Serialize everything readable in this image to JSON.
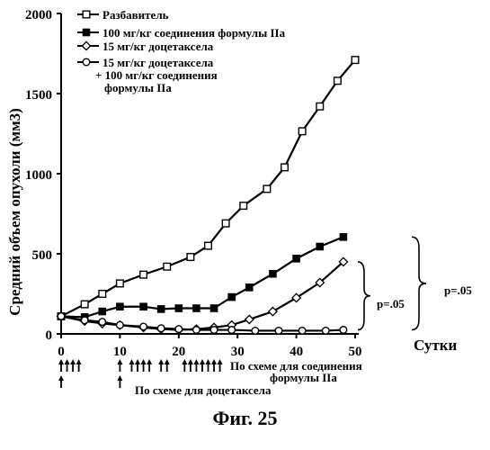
{
  "chart_data": {
    "type": "line",
    "xlabel": "Сутки",
    "ylabel": "Средний объем опухоли (мм3)",
    "xlim": [
      0,
      50
    ],
    "ylim": [
      0,
      2000
    ],
    "x_ticks": [
      "0",
      "10",
      "20",
      "30",
      "40",
      "50"
    ],
    "y_ticks": [
      "0",
      "500",
      "1000",
      "1500",
      "2000"
    ],
    "legend_placement": "top-left",
    "series": [
      {
        "name": "Разбавитель",
        "marker": "square-open",
        "points": [
          [
            0,
            110
          ],
          [
            4,
            185
          ],
          [
            7,
            250
          ],
          [
            10,
            315
          ],
          [
            14,
            370
          ],
          [
            18,
            420
          ],
          [
            22,
            480
          ],
          [
            25,
            550
          ],
          [
            28,
            690
          ],
          [
            31,
            800
          ],
          [
            35,
            905
          ],
          [
            38,
            1040
          ],
          [
            41,
            1265
          ],
          [
            44,
            1420
          ],
          [
            47,
            1580
          ],
          [
            50,
            1710
          ]
        ]
      },
      {
        "name": "100 мг/кг соединения формулы IIa",
        "marker": "square-filled",
        "points": [
          [
            0,
            110
          ],
          [
            4,
            105
          ],
          [
            7,
            140
          ],
          [
            10,
            170
          ],
          [
            14,
            170
          ],
          [
            17,
            155
          ],
          [
            20,
            160
          ],
          [
            23,
            160
          ],
          [
            26,
            160
          ],
          [
            29,
            230
          ],
          [
            32,
            290
          ],
          [
            36,
            375
          ],
          [
            40,
            470
          ],
          [
            44,
            545
          ],
          [
            48,
            605
          ]
        ]
      },
      {
        "name": "15 мг/кг доцетаксела",
        "marker": "diamond-open",
        "points": [
          [
            0,
            110
          ],
          [
            4,
            80
          ],
          [
            7,
            65
          ],
          [
            10,
            55
          ],
          [
            14,
            40
          ],
          [
            17,
            30
          ],
          [
            20,
            25
          ],
          [
            23,
            30
          ],
          [
            26,
            40
          ],
          [
            29,
            55
          ],
          [
            32,
            90
          ],
          [
            36,
            140
          ],
          [
            40,
            225
          ],
          [
            44,
            320
          ],
          [
            48,
            450
          ]
        ]
      },
      {
        "name": "15 мг/кг доцетаксела + 100 мг/кг соединения формулы IIa",
        "marker": "circle-open",
        "points": [
          [
            0,
            110
          ],
          [
            4,
            85
          ],
          [
            7,
            75
          ],
          [
            10,
            55
          ],
          [
            14,
            45
          ],
          [
            17,
            35
          ],
          [
            20,
            30
          ],
          [
            23,
            25
          ],
          [
            26,
            25
          ],
          [
            29,
            25
          ],
          [
            33,
            20
          ],
          [
            37,
            20
          ],
          [
            41,
            20
          ],
          [
            45,
            20
          ],
          [
            48,
            25
          ]
        ]
      }
    ],
    "dosing": {
      "compound_label": "По схеме для соединения формулы IIa",
      "docetaxel_label": "По схеме для доцетаксела",
      "compound_days": [
        0,
        1,
        2,
        3,
        10,
        12,
        13,
        14,
        15,
        17,
        18,
        21,
        22,
        23,
        24,
        25,
        26,
        27
      ],
      "docetaxel_days": [
        0,
        10
      ]
    },
    "annotations": [
      {
        "text": "p=.05",
        "brace": "inner"
      },
      {
        "text": "p=.05",
        "brace": "outer"
      }
    ]
  },
  "figure_caption": "Фиг. 25"
}
